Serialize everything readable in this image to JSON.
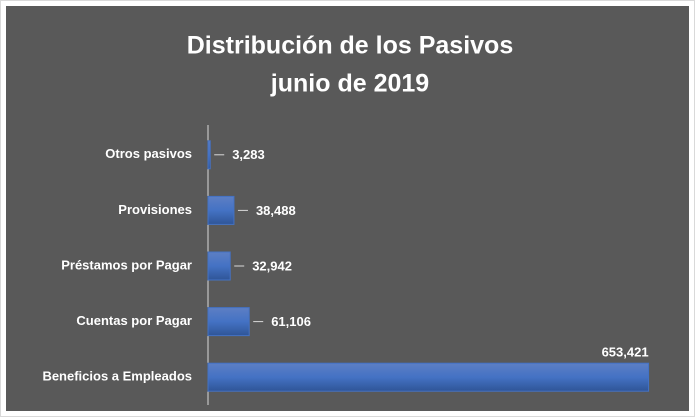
{
  "chart_data": {
    "type": "bar",
    "orientation": "horizontal",
    "title": "Distribución de los Pasivos",
    "subtitle": "junio de 2019",
    "categories": [
      "Otros pasivos",
      "Provisiones",
      "Préstamos por Pagar",
      "Cuentas por Pagar",
      "Beneficios a Empleados"
    ],
    "values": [
      3283,
      38488,
      32942,
      61106,
      653421
    ],
    "value_labels": [
      "3,283",
      "38,488",
      "32,942",
      "61,106",
      "653,421"
    ],
    "color": "#4472c4",
    "xlim": [
      0,
      700000
    ]
  }
}
